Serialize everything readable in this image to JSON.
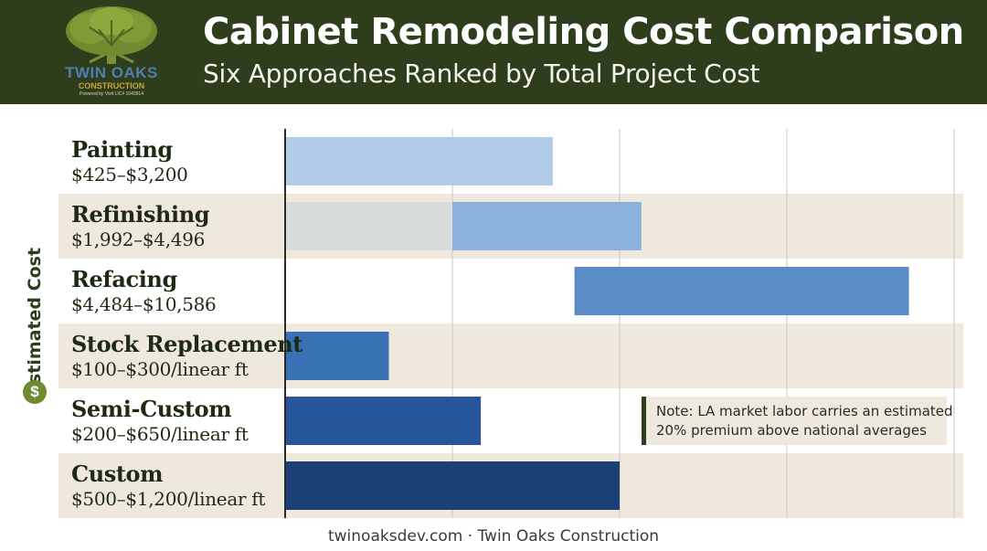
{
  "header": {
    "title": "Cabinet Remodeling Cost Comparison",
    "subtitle": "Six Approaches Ranked by Total Project Cost"
  },
  "logo": {
    "name": "TWIN OAKS",
    "sub": "CONSTRUCTION",
    "tag": "Powered by Visit LIC# 1043914",
    "icon": "oak-tree-icon"
  },
  "chart_data": {
    "type": "bar",
    "orientation": "horizontal",
    "ylabel": "Estimated Cost",
    "grid": "vertical",
    "categories": [
      {
        "name": "Painting",
        "range": "$425–$3,200",
        "start": 0,
        "end": 1.6,
        "ghost_start": 0,
        "ghost_end": 0.27,
        "color": "#b2cbe8",
        "ghost_color": "#e1ecf8",
        "band": false
      },
      {
        "name": "Refinishing",
        "range": "$1,992–$4,496",
        "start": 1.0,
        "end": 2.13,
        "ghost_start": 0,
        "ghost_end": 1.0,
        "color": "#8bb1dd",
        "ghost_color": "#d9dcdc",
        "band": true
      },
      {
        "name": "Refacing",
        "range": "$4,484–$10,586",
        "start": 1.73,
        "end": 3.73,
        "color": "#5c8cc8",
        "band": false
      },
      {
        "name": "Stock Replacement",
        "range": "$100–$300/linear ft",
        "start": 0,
        "end": 0.62,
        "color": "#3872b5",
        "band": true
      },
      {
        "name": "Semi-Custom",
        "range": "$200–$650/linear ft",
        "start": 0,
        "end": 1.17,
        "color": "#27559b",
        "band": false
      },
      {
        "name": "Custom",
        "range": "$500–$1,200/linear ft",
        "start": 0,
        "end": 2.0,
        "color": "#1c3f75",
        "band": true
      }
    ]
  },
  "note": {
    "line1": "Note: LA market labor carries an estimated",
    "line2": "20% premium above national averages"
  },
  "footer": "twinoaksdev.com · Twin Oaks Construction",
  "colors": {
    "header_bg": "#2e3d1b",
    "band_bg": "#efe9dd",
    "accent_green": "#6f8a2f"
  }
}
